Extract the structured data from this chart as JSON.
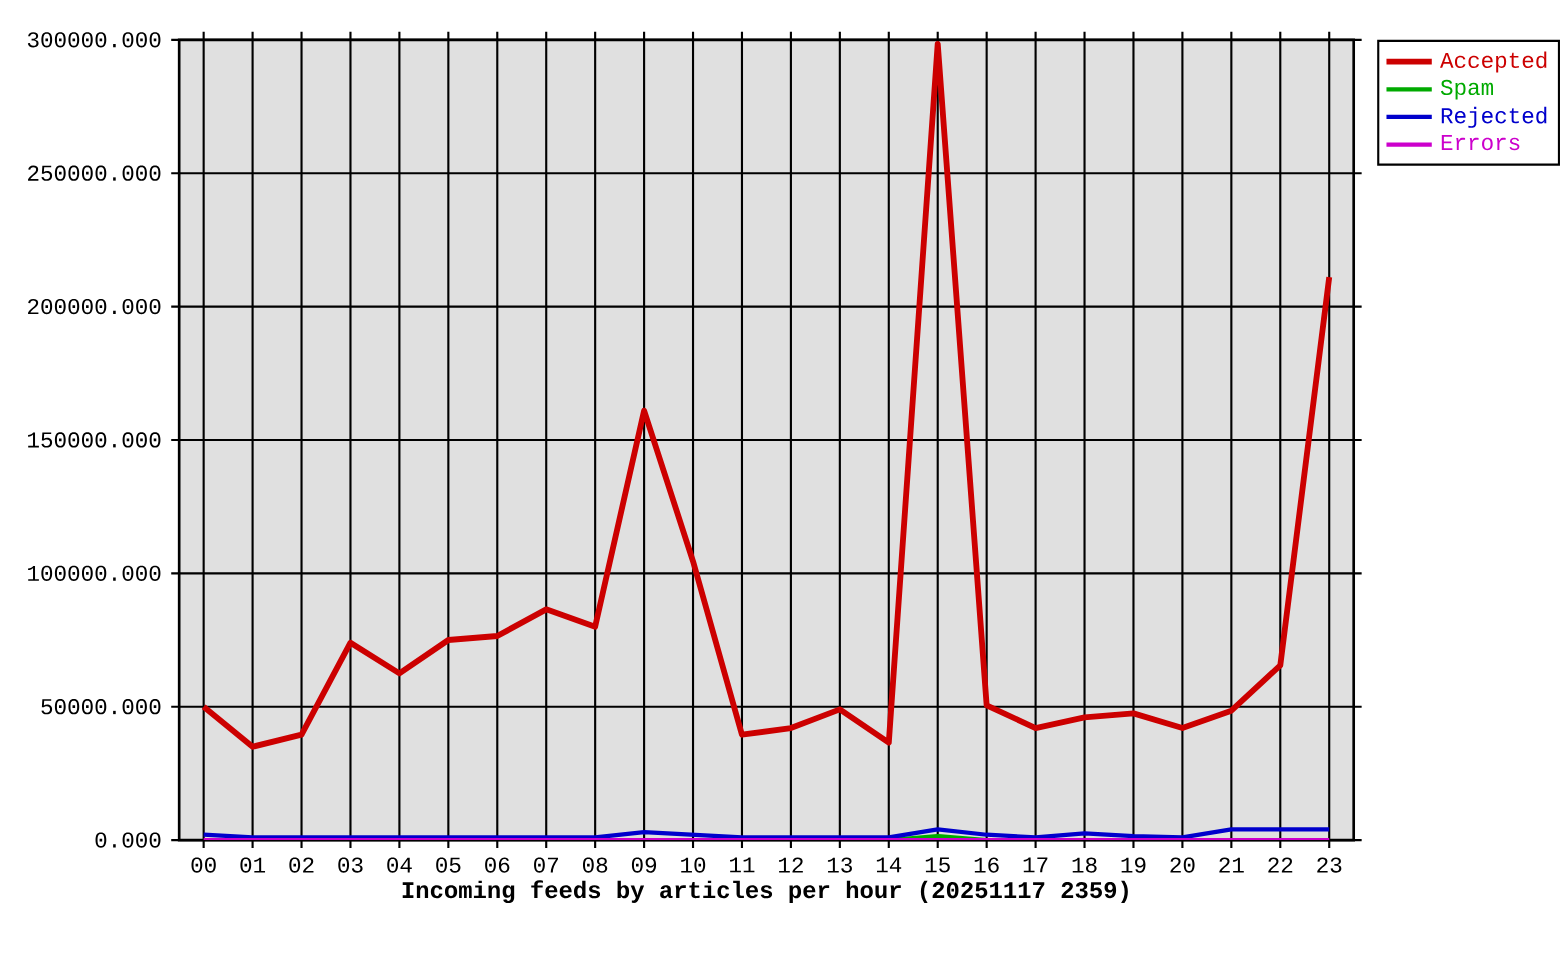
{
  "chart_data": {
    "type": "line",
    "xlabel": "Incoming feeds by articles per hour (20251117 2359)",
    "categories": [
      "00",
      "01",
      "02",
      "03",
      "04",
      "05",
      "06",
      "07",
      "08",
      "09",
      "10",
      "11",
      "12",
      "13",
      "14",
      "15",
      "16",
      "17",
      "18",
      "19",
      "20",
      "21",
      "22",
      "23"
    ],
    "series": [
      {
        "name": "Accepted",
        "color": "#cc0000",
        "values": [
          50000,
          35000,
          39500,
          74000,
          62500,
          75000,
          76500,
          86500,
          80000,
          161000,
          104500,
          39500,
          42000,
          49000,
          36500,
          298500,
          50500,
          42000,
          46000,
          47500,
          42000,
          48500,
          65500,
          211000
        ]
      },
      {
        "name": "Spam",
        "color": "#00aa00",
        "values": [
          null,
          null,
          null,
          null,
          null,
          null,
          null,
          null,
          null,
          null,
          null,
          null,
          null,
          null,
          0,
          1500,
          0,
          null,
          null,
          null,
          null,
          null,
          null,
          null
        ]
      },
      {
        "name": "Rejected",
        "color": "#0000cc",
        "values": [
          2000,
          1000,
          1000,
          1000,
          1000,
          1000,
          1000,
          1000,
          1000,
          3000,
          2000,
          1000,
          1000,
          1000,
          1000,
          4000,
          2000,
          1000,
          2500,
          1500,
          1000,
          4000,
          4000,
          4000
        ]
      },
      {
        "name": "Errors",
        "color": "#cc00cc",
        "values": [
          0,
          0,
          0,
          0,
          0,
          0,
          0,
          0,
          0,
          0,
          0,
          0,
          0,
          0,
          0,
          0,
          0,
          0,
          0,
          0,
          0,
          0,
          0,
          0
        ]
      }
    ],
    "ylim": [
      0,
      300000
    ],
    "yticks": [
      {
        "value": 0,
        "label": "0.000"
      },
      {
        "value": 50000,
        "label": "50000.000"
      },
      {
        "value": 100000,
        "label": "100000.000"
      },
      {
        "value": 150000,
        "label": "150000.000"
      },
      {
        "value": 200000,
        "label": "200000.000"
      },
      {
        "value": 250000,
        "label": "250000.000"
      },
      {
        "value": 300000,
        "label": "300000.000"
      }
    ],
    "grid": true,
    "legend": "top right"
  }
}
